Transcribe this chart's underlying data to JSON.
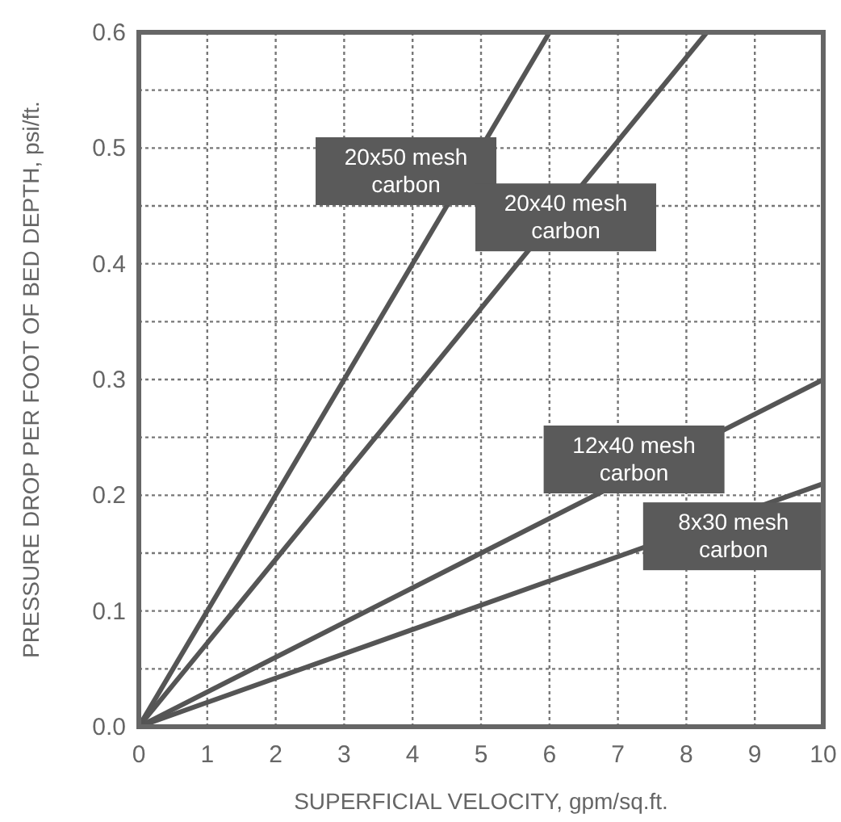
{
  "chart_data": {
    "type": "line",
    "xlabel": "SUPERFICIAL VELOCITY, gpm/sq.ft.",
    "ylabel": "PRESSURE DROP PER FOOT OF BED DEPTH, psi/ft.",
    "xlim": [
      0,
      10
    ],
    "ylim": [
      0,
      0.6
    ],
    "xticks": [
      0,
      1,
      2,
      3,
      4,
      5,
      6,
      7,
      8,
      9,
      10
    ],
    "yticks": [
      {
        "value": 0,
        "label": "0.0"
      },
      {
        "value": 0.05,
        "label": null
      },
      0.1,
      {
        "value": 0.15,
        "label": null
      },
      0.2,
      {
        "value": 0.25,
        "label": null
      },
      0.3,
      {
        "value": 0.35,
        "label": null
      },
      0.4,
      {
        "value": 0.45,
        "label": null
      },
      0.5,
      {
        "value": 0.55,
        "label": null
      },
      0.6
    ],
    "grid": true,
    "line_style": "solid",
    "marker": "none",
    "series": [
      {
        "name": "20x50 mesh carbon",
        "color": "#555555",
        "x": [
          0,
          6
        ],
        "values": [
          0,
          0.6
        ]
      },
      {
        "name": "20x40 mesh carbon",
        "color": "#555555",
        "x": [
          0,
          8.3
        ],
        "values": [
          0,
          0.6
        ]
      },
      {
        "name": "12x40 mesh carbon",
        "color": "#555555",
        "x": [
          0,
          10
        ],
        "values": [
          0,
          0.3
        ]
      },
      {
        "name": "8x30 mesh carbon",
        "color": "#555555",
        "x": [
          0,
          10
        ],
        "values": [
          0,
          0.21
        ]
      }
    ]
  }
}
